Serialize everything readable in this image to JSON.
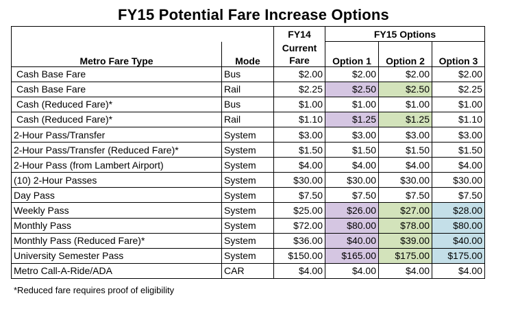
{
  "title": "FY15 Potential Fare Increase Options",
  "headers": {
    "fy14": "FY14",
    "fy15": "FY15 Options",
    "fare_type": "Metro Fare Type",
    "mode": "Mode",
    "current_line1": "Current",
    "current_line2": "Fare",
    "option1": "Option 1",
    "option2": "Option 2",
    "option3": "Option 3"
  },
  "colors": {
    "option1_highlight": "#d5c6e2",
    "option2_highlight": "#d3e3bb",
    "option3_highlight": "#c4dfe8"
  },
  "rows": [
    {
      "type": "Cash Base Fare",
      "mode": "Bus",
      "current": "$2.00",
      "opt1": "$2.00",
      "opt2": "$2.00",
      "opt3": "$2.00"
    },
    {
      "type": "Cash Base Fare",
      "mode": "Rail",
      "current": "$2.25",
      "opt1": "$2.50",
      "opt2": "$2.50",
      "opt3": "$2.25"
    },
    {
      "type": "Cash (Reduced Fare)*",
      "mode": "Bus",
      "current": "$1.00",
      "opt1": "$1.00",
      "opt2": "$1.00",
      "opt3": "$1.00"
    },
    {
      "type": "Cash (Reduced Fare)*",
      "mode": "Rail",
      "current": "$1.10",
      "opt1": "$1.25",
      "opt2": "$1.25",
      "opt3": "$1.10"
    },
    {
      "type": "2-Hour Pass/Transfer",
      "mode": "System",
      "current": "$3.00",
      "opt1": "$3.00",
      "opt2": "$3.00",
      "opt3": "$3.00"
    },
    {
      "type": "2-Hour Pass/Transfer (Reduced Fare)*",
      "mode": "System",
      "current": "$1.50",
      "opt1": "$1.50",
      "opt2": "$1.50",
      "opt3": "$1.50"
    },
    {
      "type": "2-Hour Pass (from Lambert Airport)",
      "mode": "System",
      "current": "$4.00",
      "opt1": "$4.00",
      "opt2": "$4.00",
      "opt3": "$4.00"
    },
    {
      "type": "(10) 2-Hour Passes",
      "mode": "System",
      "current": "$30.00",
      "opt1": "$30.00",
      "opt2": "$30.00",
      "opt3": "$30.00"
    },
    {
      "type": "Day Pass",
      "mode": "System",
      "current": "$7.50",
      "opt1": "$7.50",
      "opt2": "$7.50",
      "opt3": "$7.50"
    },
    {
      "type": "Weekly Pass",
      "mode": "System",
      "current": "$25.00",
      "opt1": "$26.00",
      "opt2": "$27.00",
      "opt3": "$28.00"
    },
    {
      "type": "Monthly Pass",
      "mode": "System",
      "current": "$72.00",
      "opt1": "$80.00",
      "opt2": "$78.00",
      "opt3": "$80.00"
    },
    {
      "type": "Monthly Pass (Reduced Fare)*",
      "mode": "System",
      "current": "$36.00",
      "opt1": "$40.00",
      "opt2": "$39.00",
      "opt3": "$40.00"
    },
    {
      "type": "University Semester Pass",
      "mode": "System",
      "current": "$150.00",
      "opt1": "$165.00",
      "opt2": "$175.00",
      "opt3": "$175.00"
    },
    {
      "type": "Metro Call-A-Ride/ADA",
      "mode": "CAR",
      "current": "$4.00",
      "opt1": "$4.00",
      "opt2": "$4.00",
      "opt3": "$4.00"
    }
  ],
  "footnote": "*Reduced fare requires proof of eligibility"
}
